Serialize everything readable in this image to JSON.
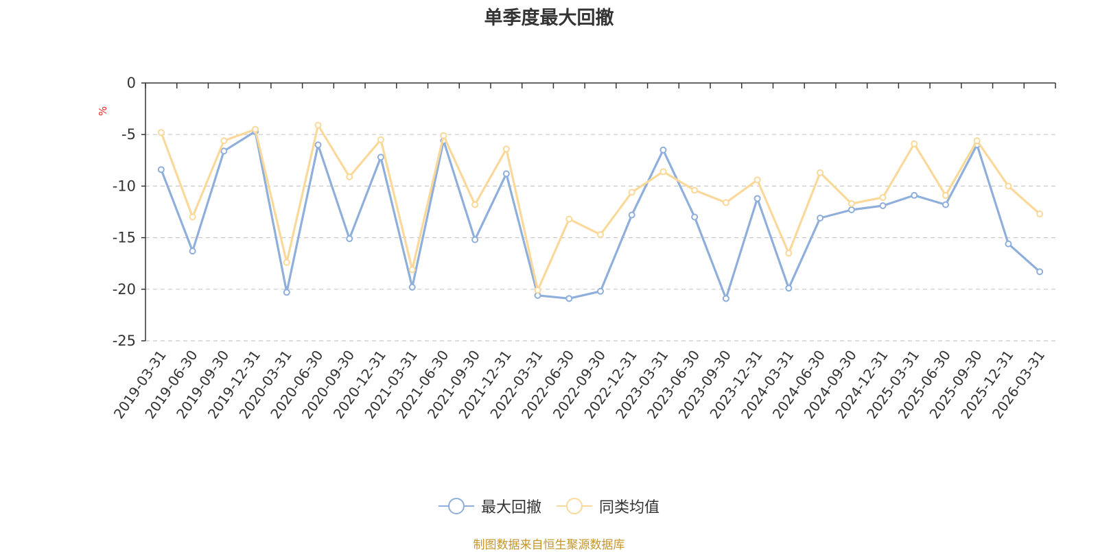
{
  "chart_data": {
    "type": "line",
    "title": "单季度最大回撤",
    "ylabel": "%",
    "xlabel": "",
    "ylim": [
      -25,
      0
    ],
    "yticks": [
      0,
      -5,
      -10,
      -15,
      -20,
      -25
    ],
    "categories": [
      "2019-03-31",
      "2019-06-30",
      "2019-09-30",
      "2019-12-31",
      "2020-03-31",
      "2020-06-30",
      "2020-09-30",
      "2020-12-31",
      "2021-03-31",
      "2021-06-30",
      "2021-09-30",
      "2021-12-31",
      "2022-03-31",
      "2022-06-30",
      "2022-09-30",
      "2022-12-31",
      "2023-03-31",
      "2023-06-30",
      "2023-09-30",
      "2023-12-31",
      "2024-03-31",
      "2024-06-30",
      "2024-09-30",
      "2024-12-31",
      "2025-03-31",
      "2025-06-30",
      "2025-09-30",
      "2025-12-31",
      "2026-03-31"
    ],
    "series": [
      {
        "name": "最大回撤",
        "color": "#8eaedb",
        "values": [
          -8.4,
          -16.3,
          -6.6,
          -4.7,
          -20.3,
          -6.0,
          -15.1,
          -7.2,
          -19.8,
          -5.6,
          -15.2,
          -8.8,
          -20.6,
          -20.9,
          -20.2,
          -12.8,
          -6.5,
          -13.0,
          -20.9,
          -11.2,
          -19.9,
          -13.1,
          -12.3,
          -11.9,
          -10.9,
          -11.8,
          -6.0,
          -15.6,
          -18.3
        ]
      },
      {
        "name": "同类均值",
        "color": "#fad89a",
        "values": [
          -4.8,
          -13.0,
          -5.6,
          -4.5,
          -17.4,
          -4.1,
          -9.1,
          -5.5,
          -18.1,
          -5.1,
          -11.8,
          -6.4,
          -20.1,
          -13.2,
          -14.7,
          -10.6,
          -8.6,
          -10.4,
          -11.6,
          -9.4,
          -16.5,
          -8.7,
          -11.7,
          -11.1,
          -5.9,
          -10.9,
          -5.6,
          -10.0,
          -12.7
        ]
      }
    ]
  },
  "legend": {
    "items": [
      {
        "label": "最大回撤",
        "color": "#8eaedb"
      },
      {
        "label": "同类均值",
        "color": "#fad89a"
      }
    ]
  },
  "source_text": "制图数据来自恒生聚源数据库"
}
